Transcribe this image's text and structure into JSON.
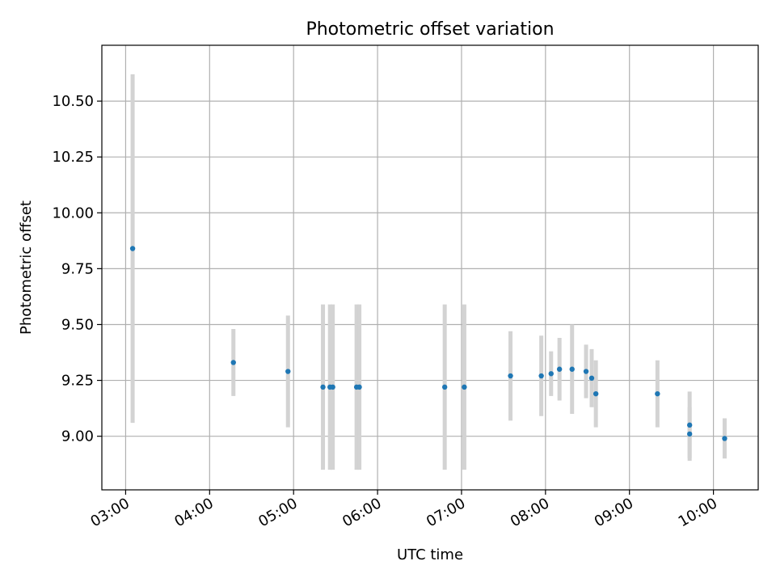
{
  "chart_data": {
    "type": "scatter",
    "title": "Photometric offset variation",
    "xlabel": "UTC time",
    "ylabel": "Photometric offset",
    "x_ticks": [
      "03:00",
      "04:00",
      "05:00",
      "06:00",
      "07:00",
      "08:00",
      "09:00",
      "10:00"
    ],
    "y_ticks": [
      "9.00",
      "9.25",
      "9.50",
      "9.75",
      "10.00",
      "10.25",
      "10.50"
    ],
    "xlim": [
      "02:43",
      "10:32"
    ],
    "ylim": [
      8.76,
      10.75
    ],
    "grid": true,
    "legend": "none",
    "colors": {
      "point": "#1f77b4",
      "errorbar": "#d3d3d3"
    },
    "series": [
      {
        "points": [
          {
            "x": "03:05",
            "y": 9.84,
            "yerr": 0.78
          },
          {
            "x": "04:17",
            "y": 9.33,
            "yerr": 0.15
          },
          {
            "x": "04:56",
            "y": 9.29,
            "yerr": 0.25
          },
          {
            "x": "05:21",
            "y": 9.22,
            "yerr": 0.37
          },
          {
            "x": "05:26",
            "y": 9.22,
            "yerr": 0.37
          },
          {
            "x": "05:28",
            "y": 9.22,
            "yerr": 0.37
          },
          {
            "x": "05:45",
            "y": 9.22,
            "yerr": 0.37
          },
          {
            "x": "05:47",
            "y": 9.22,
            "yerr": 0.37
          },
          {
            "x": "06:48",
            "y": 9.22,
            "yerr": 0.37
          },
          {
            "x": "07:02",
            "y": 9.22,
            "yerr": 0.37
          },
          {
            "x": "07:35",
            "y": 9.27,
            "yerr": 0.2
          },
          {
            "x": "07:57",
            "y": 9.27,
            "yerr": 0.18
          },
          {
            "x": "08:04",
            "y": 9.28,
            "yerr": 0.1
          },
          {
            "x": "08:10",
            "y": 9.3,
            "yerr": 0.14
          },
          {
            "x": "08:19",
            "y": 9.3,
            "yerr": 0.2
          },
          {
            "x": "08:29",
            "y": 9.29,
            "yerr": 0.12
          },
          {
            "x": "08:33",
            "y": 9.26,
            "yerr": 0.13
          },
          {
            "x": "08:36",
            "y": 9.19,
            "yerr": 0.15
          },
          {
            "x": "09:20",
            "y": 9.19,
            "yerr": 0.15
          },
          {
            "x": "09:43",
            "y": 9.05,
            "yerr": 0.15
          },
          {
            "x": "09:43",
            "y": 9.01,
            "yerr": 0.12
          },
          {
            "x": "10:08",
            "y": 8.99,
            "yerr": 0.09
          }
        ]
      }
    ]
  }
}
